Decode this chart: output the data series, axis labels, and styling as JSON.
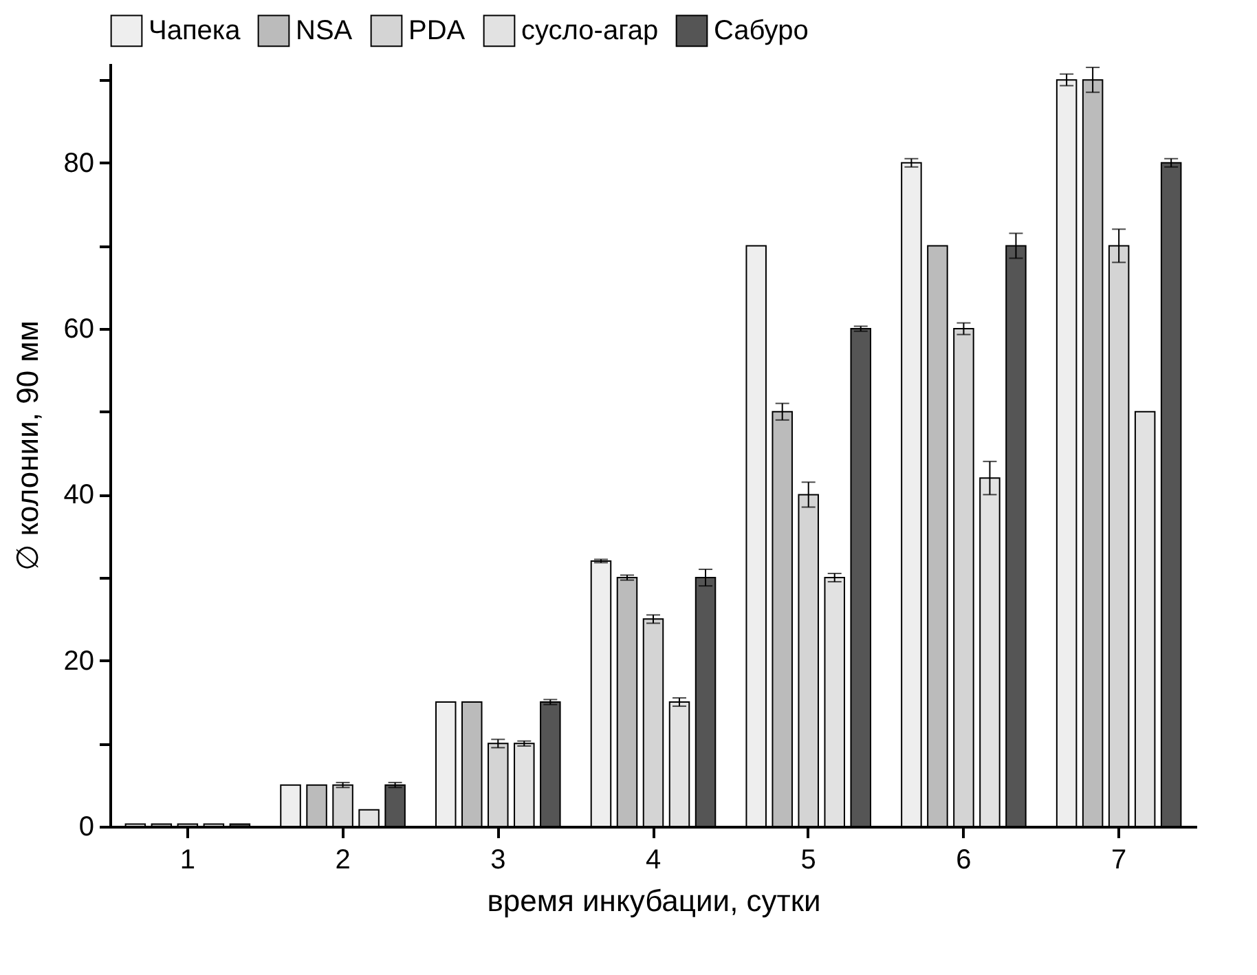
{
  "chart_data": {
    "type": "bar",
    "xlabel": "время инкубации, сутки",
    "ylabel": "∅ колонии, 90 мм",
    "categories": [
      "1",
      "2",
      "3",
      "4",
      "5",
      "6",
      "7"
    ],
    "series": [
      {
        "name": "Чапека",
        "color": "#eeeeee",
        "values": [
          0.3,
          5,
          15,
          32,
          70,
          80,
          90
        ],
        "errors": [
          null,
          null,
          null,
          0.2,
          null,
          0.5,
          0.7
        ]
      },
      {
        "name": "NSA",
        "color": "#bbbbbb",
        "values": [
          0.3,
          5,
          15,
          30,
          50,
          70,
          90
        ],
        "errors": [
          null,
          null,
          null,
          0.3,
          1,
          null,
          1.5
        ]
      },
      {
        "name": "PDA",
        "color": "#d4d4d4",
        "values": [
          0.3,
          5,
          10,
          25,
          40,
          60,
          70
        ],
        "errors": [
          null,
          0.3,
          0.5,
          0.5,
          1.5,
          0.7,
          2
        ]
      },
      {
        "name": "сусло-агар",
        "color": "#e2e2e2",
        "values": [
          0.3,
          2,
          10,
          15,
          30,
          42,
          50
        ],
        "errors": [
          null,
          null,
          0.3,
          0.5,
          0.5,
          2,
          null
        ]
      },
      {
        "name": "Сабуро",
        "color": "#555555",
        "values": [
          0.3,
          5,
          15,
          30,
          60,
          70,
          80
        ],
        "errors": [
          null,
          0.3,
          0.3,
          1,
          0.3,
          1.5,
          0.5
        ]
      }
    ],
    "ylim": [
      0,
      92
    ],
    "yticks": [
      0,
      {
        "value": 10,
        "label": null
      },
      20,
      {
        "value": 30,
        "label": null
      },
      40,
      {
        "value": 50,
        "label": null
      },
      60,
      {
        "value": 70,
        "label": null
      },
      80,
      {
        "value": 90,
        "label": null
      }
    ],
    "legend": "top",
    "grid": false
  }
}
